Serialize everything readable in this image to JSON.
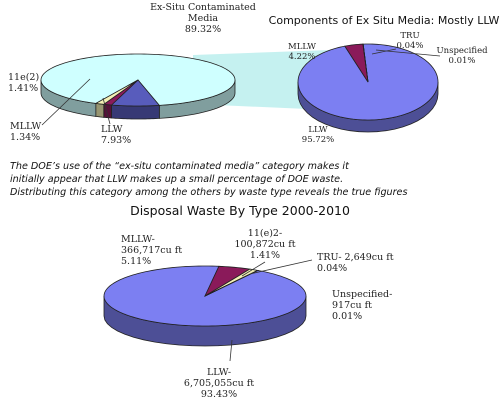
{
  "chart_data": [
    {
      "type": "pie",
      "title": "",
      "slices": [
        {
          "label_lines": [
            "Ex-Situ Contaminated",
            "Media"
          ],
          "value_text": "89.32%",
          "value": 89.32,
          "color": "#cfffff"
        },
        {
          "label_lines": [
            "LLW"
          ],
          "value_text": "7.93%",
          "value": 7.93,
          "color": "#585cbc"
        },
        {
          "label_lines": [
            "MLLW"
          ],
          "value_text": "1.34%",
          "value": 1.34,
          "color": "#8a1a5a"
        },
        {
          "label_lines": [
            "11e(2)"
          ],
          "value_text": "1.41%",
          "value": 1.41,
          "color": "#f4f0b6"
        }
      ]
    },
    {
      "type": "pie",
      "title": "Components of Ex Situ Media: Mostly LLW",
      "slices": [
        {
          "label_lines": [
            "LLW"
          ],
          "value_text": "95.72%",
          "value": 95.72,
          "color": "#7c7ff2"
        },
        {
          "label_lines": [
            "MLLW"
          ],
          "value_text": "4.22%",
          "value": 4.22,
          "color": "#8a1a5a"
        },
        {
          "label_lines": [
            "TRU"
          ],
          "value_text": "0.04%",
          "value": 0.04,
          "color": "#ffffff"
        },
        {
          "label_lines": [
            "Unspecified"
          ],
          "value_text": "0.01%",
          "value": 0.01,
          "color": "#ffffff"
        }
      ]
    },
    {
      "type": "pie",
      "title": "Disposal Waste By Type 2000-2010",
      "slices": [
        {
          "label_lines": [
            "LLW-",
            "6,705,055cu ft"
          ],
          "value_text": "93.43%",
          "value": 93.43,
          "color": "#7c7ff2"
        },
        {
          "label_lines": [
            "MLLW-",
            "366,717cu ft"
          ],
          "value_text": "5.11%",
          "value": 5.11,
          "color": "#8a1a5a"
        },
        {
          "label_lines": [
            "11(e)2-",
            "100,872cu ft"
          ],
          "value_text": "1.41%",
          "value": 1.41,
          "color": "#f4f0b6"
        },
        {
          "label_lines": [
            "TRU- 2,649cu ft"
          ],
          "value_text": "0.04%",
          "value": 0.04,
          "color": "#ffffff"
        },
        {
          "label_lines": [
            "Unspecified-",
            "917cu ft"
          ],
          "value_text": "0.01%",
          "value": 0.01,
          "color": "#ffffff"
        }
      ]
    }
  ],
  "caption_lines": [
    "The DOE’s use of the “ex-situ contaminated media” category makes it",
    "initially appear that LLW makes up a small percentage of DOE waste.",
    "Distributing this category among the others by waste type reveals the true figures"
  ],
  "colors": {
    "connector": "#bff0ee",
    "outline": "#222222",
    "shade_factor": 0.62
  }
}
